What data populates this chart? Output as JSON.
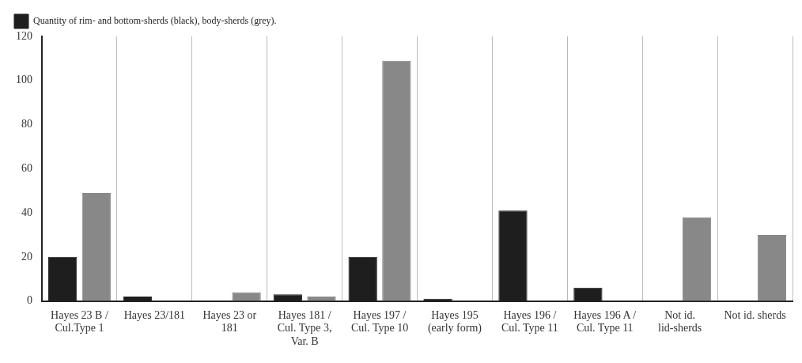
{
  "chart_data": {
    "type": "bar",
    "categories": [
      "Hayes 23 B / Cul.Type 1",
      "Hayes 23/181",
      "Hayes 23 or 181",
      "Hayes 181 / Cul. Type 3, Var. B",
      "Hayes 197 / Cul. Type 10",
      "Hayes 195 (early form)",
      "Hayes 196 / Cul. Type 11",
      "Hayes 196 A / Cul. Type 11",
      "Not id. lid-sherds",
      "Not id. sherds"
    ],
    "series": [
      {
        "name": "Quantity of rim- and bottom-sherds (black), body-sherds (grey).",
        "color": "#1e1e1e",
        "values": [
          20,
          2,
          0,
          3,
          20,
          1,
          41,
          6,
          0,
          0
        ]
      },
      {
        "color": "#888888",
        "values": [
          49,
          0,
          4,
          2,
          109,
          0,
          0,
          0,
          38,
          30
        ]
      }
    ],
    "ylim": [
      0,
      120
    ],
    "yticks": [
      0,
      20,
      40,
      60,
      80,
      100,
      120
    ],
    "grid": "x",
    "legend": "top left"
  }
}
